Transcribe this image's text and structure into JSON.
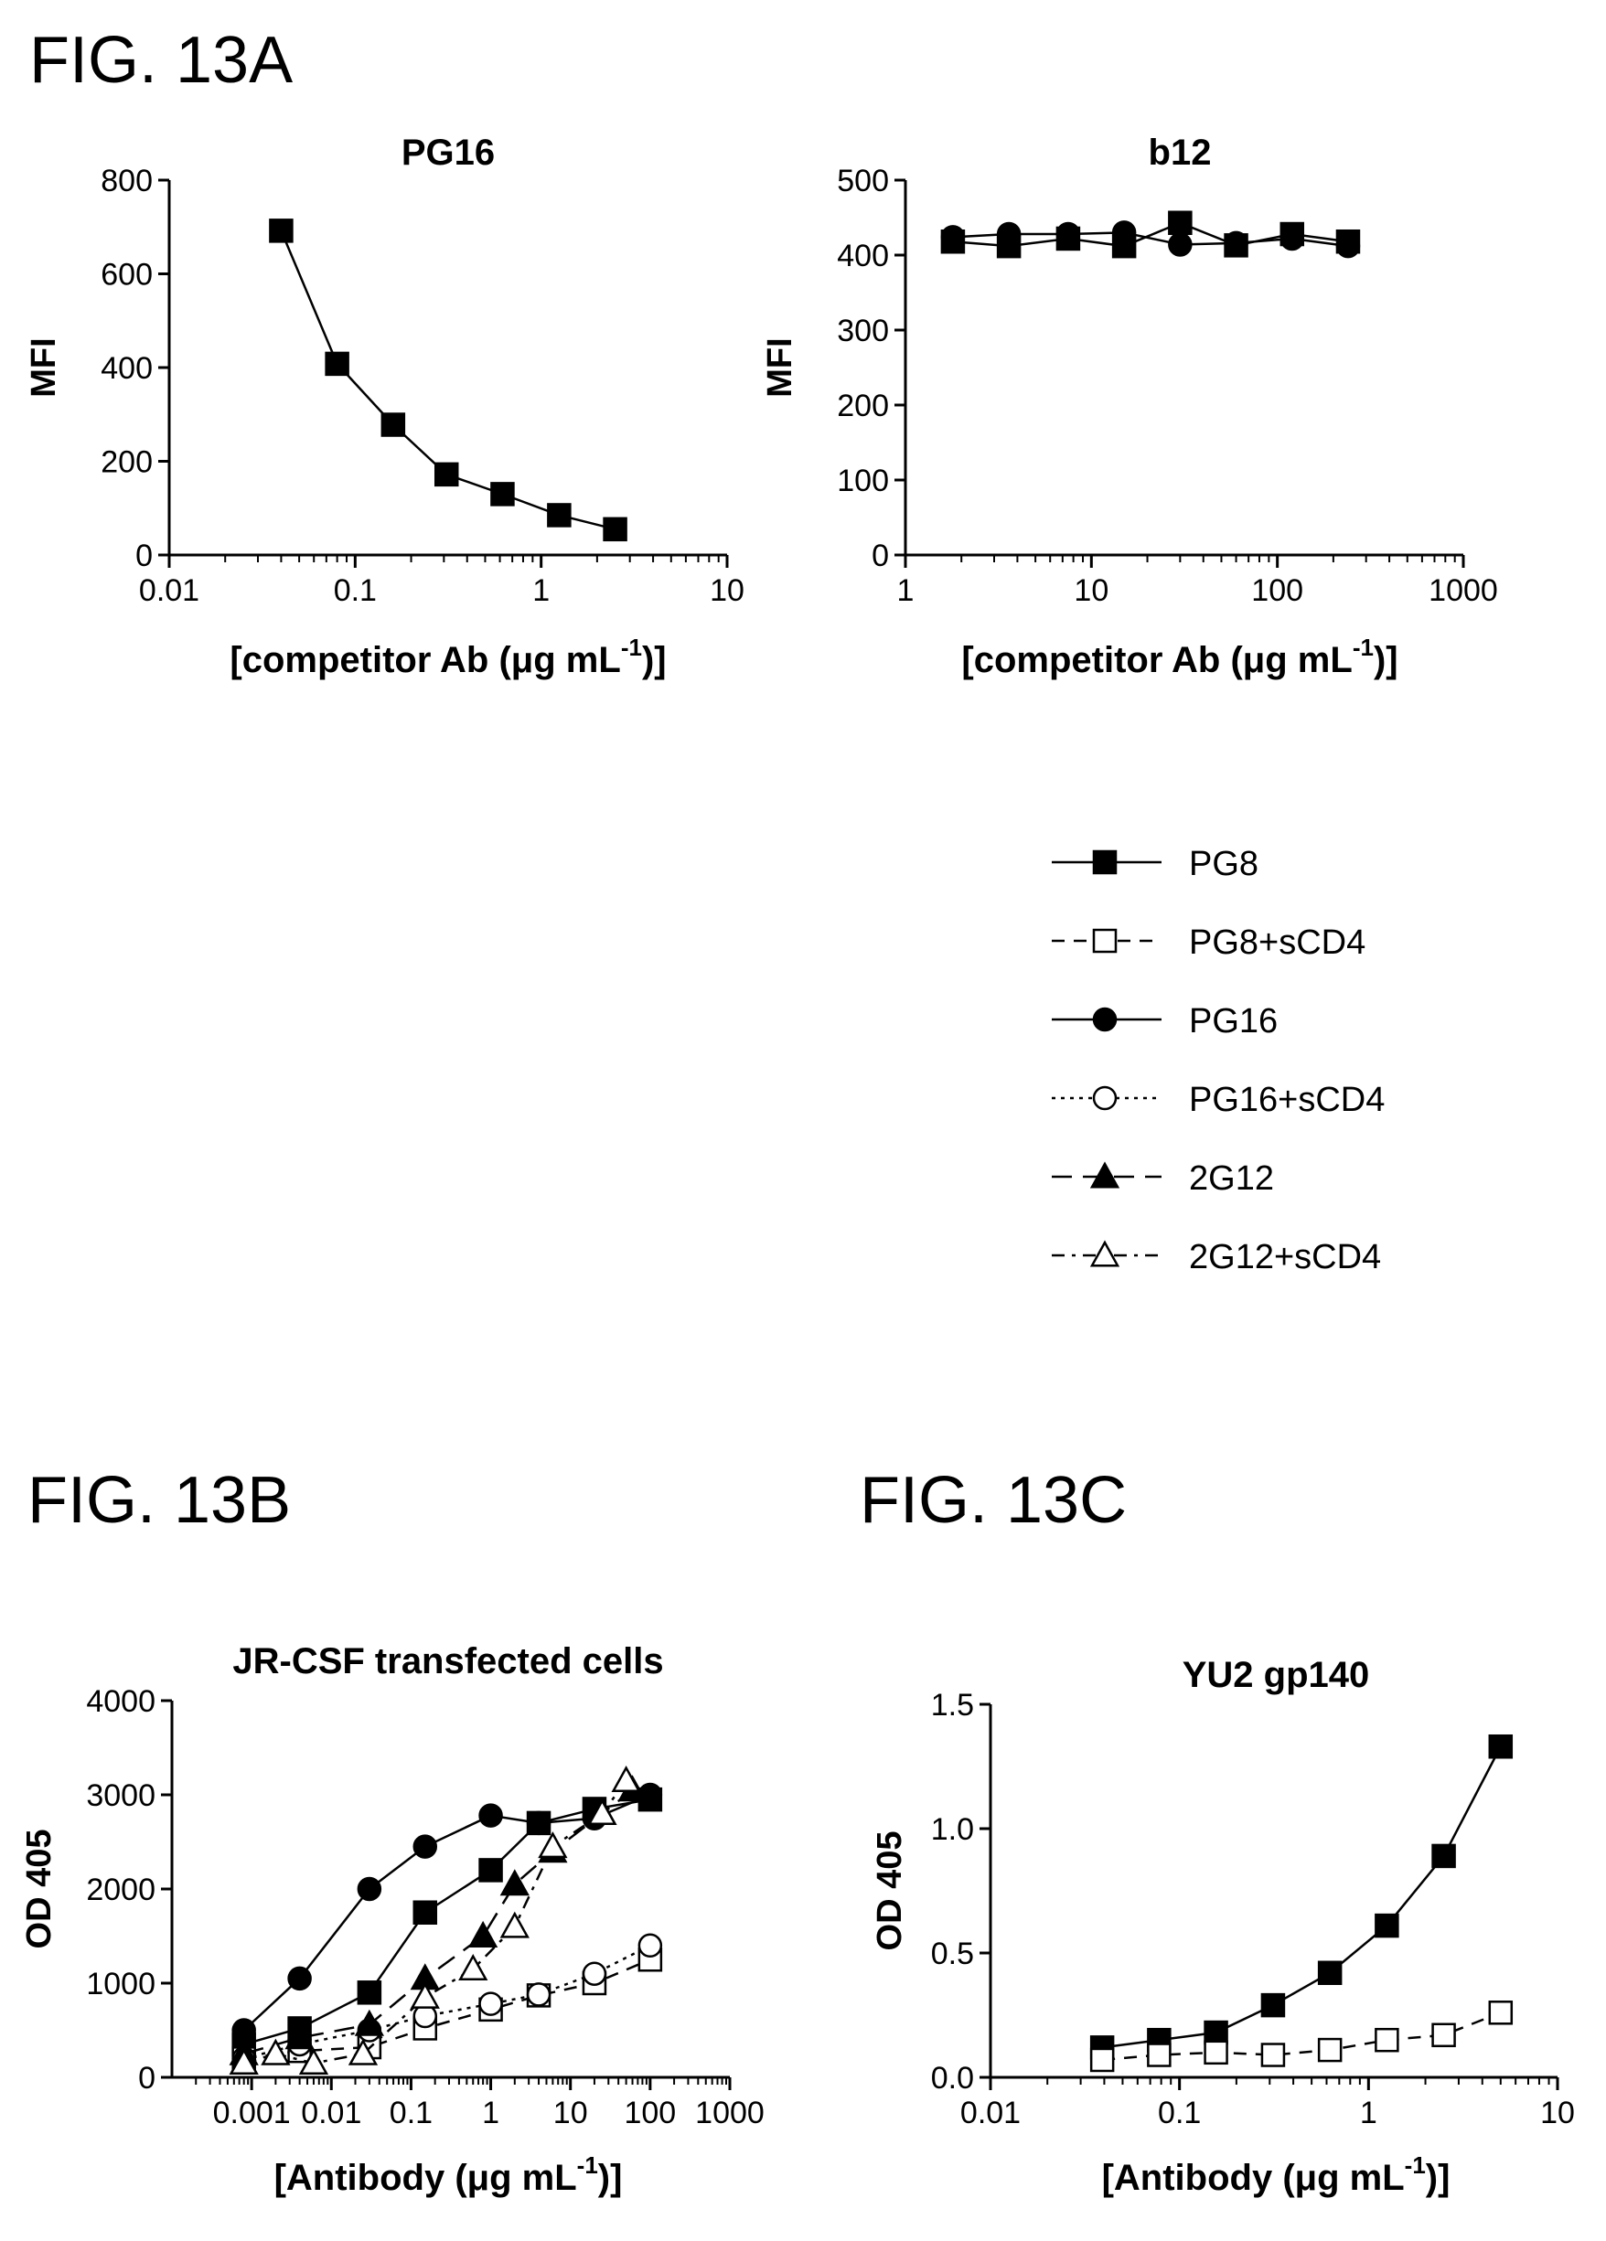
{
  "figures": {
    "a": "FIG. 13A",
    "b": "FIG. 13B",
    "c": "FIG. 13C"
  },
  "legend": [
    {
      "label": "PG8",
      "marker": "square",
      "fill": "#000000",
      "dash": "solid"
    },
    {
      "label": "PG8+sCD4",
      "marker": "square",
      "fill": "#ffffff",
      "dash": "dash"
    },
    {
      "label": "PG16",
      "marker": "circle",
      "fill": "#000000",
      "dash": "solid"
    },
    {
      "label": "PG16+sCD4",
      "marker": "circle",
      "fill": "#ffffff",
      "dash": "dot"
    },
    {
      "label": "2G12",
      "marker": "triangle",
      "fill": "#000000",
      "dash": "longdash"
    },
    {
      "label": "2G12+sCD4",
      "marker": "triangle",
      "fill": "#ffffff",
      "dash": "dashdot"
    }
  ],
  "chart_data": [
    {
      "id": "pg16",
      "type": "line",
      "title": "PG16",
      "ylabel": "MFI",
      "xlabel": "[competitor Ab (μg mL",
      "xlabel_sup": "-1",
      "xlabel_end": ")]",
      "xscale": "log",
      "xlim": [
        0.01,
        10
      ],
      "ylim": [
        0,
        800
      ],
      "xticks": [
        0.01,
        0.1,
        1,
        10
      ],
      "xticklabels": [
        "0.01",
        "0.1",
        "1",
        "10"
      ],
      "yticks": [
        0,
        200,
        400,
        600,
        800
      ],
      "yticklabels": [
        "0",
        "200",
        "400",
        "600",
        "800"
      ],
      "grid": false,
      "series": [
        {
          "marker": "square",
          "fill": "#000000",
          "dash": "solid",
          "x": [
            0.04,
            0.08,
            0.16,
            0.31,
            0.62,
            1.25,
            2.5
          ],
          "y": [
            692,
            408,
            278,
            172,
            130,
            85,
            55
          ]
        }
      ]
    },
    {
      "id": "b12",
      "type": "line",
      "title": "b12",
      "ylabel": "MFI",
      "xlabel": "[competitor Ab (μg mL",
      "xlabel_sup": "-1",
      "xlabel_end": ")]",
      "xscale": "log",
      "xlim": [
        1,
        1000
      ],
      "ylim": [
        0,
        500
      ],
      "xticks": [
        1,
        10,
        100,
        1000
      ],
      "xticklabels": [
        "1",
        "10",
        "100",
        "1000"
      ],
      "yticks": [
        0,
        100,
        200,
        300,
        400,
        500
      ],
      "yticklabels": [
        "0",
        "100",
        "200",
        "300",
        "400",
        "500"
      ],
      "grid": false,
      "series": [
        {
          "marker": "square",
          "fill": "#000000",
          "dash": "solid",
          "x": [
            1.8,
            3.6,
            7.5,
            15,
            30,
            60,
            120,
            240
          ],
          "y": [
            418,
            412,
            422,
            412,
            443,
            413,
            428,
            418
          ]
        },
        {
          "marker": "circle",
          "fill": "#000000",
          "dash": "solid",
          "x": [
            1.8,
            3.6,
            7.5,
            15,
            30,
            60,
            120,
            240
          ],
          "y": [
            424,
            428,
            428,
            430,
            414,
            416,
            422,
            412
          ]
        }
      ]
    },
    {
      "id": "jrcsf",
      "type": "line",
      "title": "JR-CSF transfected cells",
      "ylabel": "OD 405",
      "xlabel": "[Antibody (μg mL",
      "xlabel_sup": "-1",
      "xlabel_end": ")]",
      "xscale": "log",
      "xlim": [
        0.0001,
        1000
      ],
      "ylim": [
        0,
        4000
      ],
      "xticks": [
        0.001,
        0.01,
        0.1,
        1,
        10,
        100,
        1000
      ],
      "xticklabels": [
        "0.001",
        "0.01",
        "0.1",
        "1",
        "10",
        "100",
        "1000"
      ],
      "yticks": [
        0,
        1000,
        2000,
        3000,
        4000
      ],
      "yticklabels": [
        "0",
        "1000",
        "2000",
        "3000",
        "4000"
      ],
      "grid": false,
      "series": [
        {
          "name": "PG8",
          "marker": "square",
          "fill": "#000000",
          "dash": "solid",
          "x": [
            0.0008,
            0.004,
            0.03,
            0.15,
            1,
            4,
            20,
            100
          ],
          "y": [
            350,
            520,
            900,
            1750,
            2200,
            2700,
            2850,
            2950
          ]
        },
        {
          "name": "PG8+sCD4",
          "marker": "square",
          "fill": "#ffffff",
          "dash": "dash",
          "x": [
            0.0008,
            0.004,
            0.03,
            0.15,
            1,
            4,
            20,
            100
          ],
          "y": [
            200,
            280,
            320,
            520,
            720,
            870,
            1000,
            1250
          ]
        },
        {
          "name": "PG16",
          "marker": "circle",
          "fill": "#000000",
          "dash": "solid",
          "x": [
            0.0008,
            0.004,
            0.03,
            0.15,
            1,
            4,
            20,
            100
          ],
          "y": [
            500,
            1050,
            2000,
            2450,
            2780,
            2700,
            2750,
            3000
          ]
        },
        {
          "name": "PG16+sCD4",
          "marker": "circle",
          "fill": "#ffffff",
          "dash": "dot",
          "x": [
            0.0008,
            0.004,
            0.03,
            0.15,
            1,
            4,
            20,
            100
          ],
          "y": [
            200,
            350,
            500,
            650,
            780,
            880,
            1100,
            1400
          ]
        },
        {
          "name": "2G12",
          "marker": "triangle",
          "fill": "#000000",
          "dash": "longdash",
          "x": [
            0.0008,
            0.004,
            0.03,
            0.15,
            0.8,
            2,
            6,
            25,
            60
          ],
          "y": [
            250,
            420,
            560,
            1050,
            1500,
            2050,
            2400,
            2800,
            3050
          ]
        },
        {
          "name": "2G12+sCD4",
          "marker": "triangle",
          "fill": "#ffffff",
          "dash": "dashdot",
          "x": [
            0.0008,
            0.002,
            0.006,
            0.025,
            0.15,
            0.6,
            2,
            6,
            25,
            50
          ],
          "y": [
            150,
            250,
            150,
            250,
            850,
            1150,
            1600,
            2450,
            2800,
            3150
          ]
        }
      ]
    },
    {
      "id": "yu2",
      "type": "line",
      "title": "YU2 gp140",
      "ylabel": "OD 405",
      "xlabel": "[Antibody (μg mL",
      "xlabel_sup": "-1",
      "xlabel_end": ")]",
      "xscale": "log",
      "xlim": [
        0.01,
        10
      ],
      "ylim": [
        0,
        1.5
      ],
      "xticks": [
        0.01,
        0.1,
        1,
        10
      ],
      "xticklabels": [
        "0.01",
        "0.1",
        "1",
        "10"
      ],
      "yticks": [
        0,
        0.5,
        1.0,
        1.5
      ],
      "yticklabels": [
        "0.0",
        "0.5",
        "1.0",
        "1.5"
      ],
      "grid": false,
      "series": [
        {
          "name": "PG8",
          "marker": "square",
          "fill": "#000000",
          "dash": "solid",
          "x": [
            0.039,
            0.078,
            0.156,
            0.3125,
            0.625,
            1.25,
            2.5,
            5
          ],
          "y": [
            0.12,
            0.15,
            0.18,
            0.29,
            0.42,
            0.61,
            0.89,
            1.33
          ]
        },
        {
          "name": "PG8+sCD4",
          "marker": "square",
          "fill": "#ffffff",
          "dash": "dash",
          "x": [
            0.039,
            0.078,
            0.156,
            0.3125,
            0.625,
            1.25,
            2.5,
            5
          ],
          "y": [
            0.07,
            0.09,
            0.1,
            0.09,
            0.11,
            0.15,
            0.17,
            0.26
          ]
        }
      ]
    }
  ]
}
